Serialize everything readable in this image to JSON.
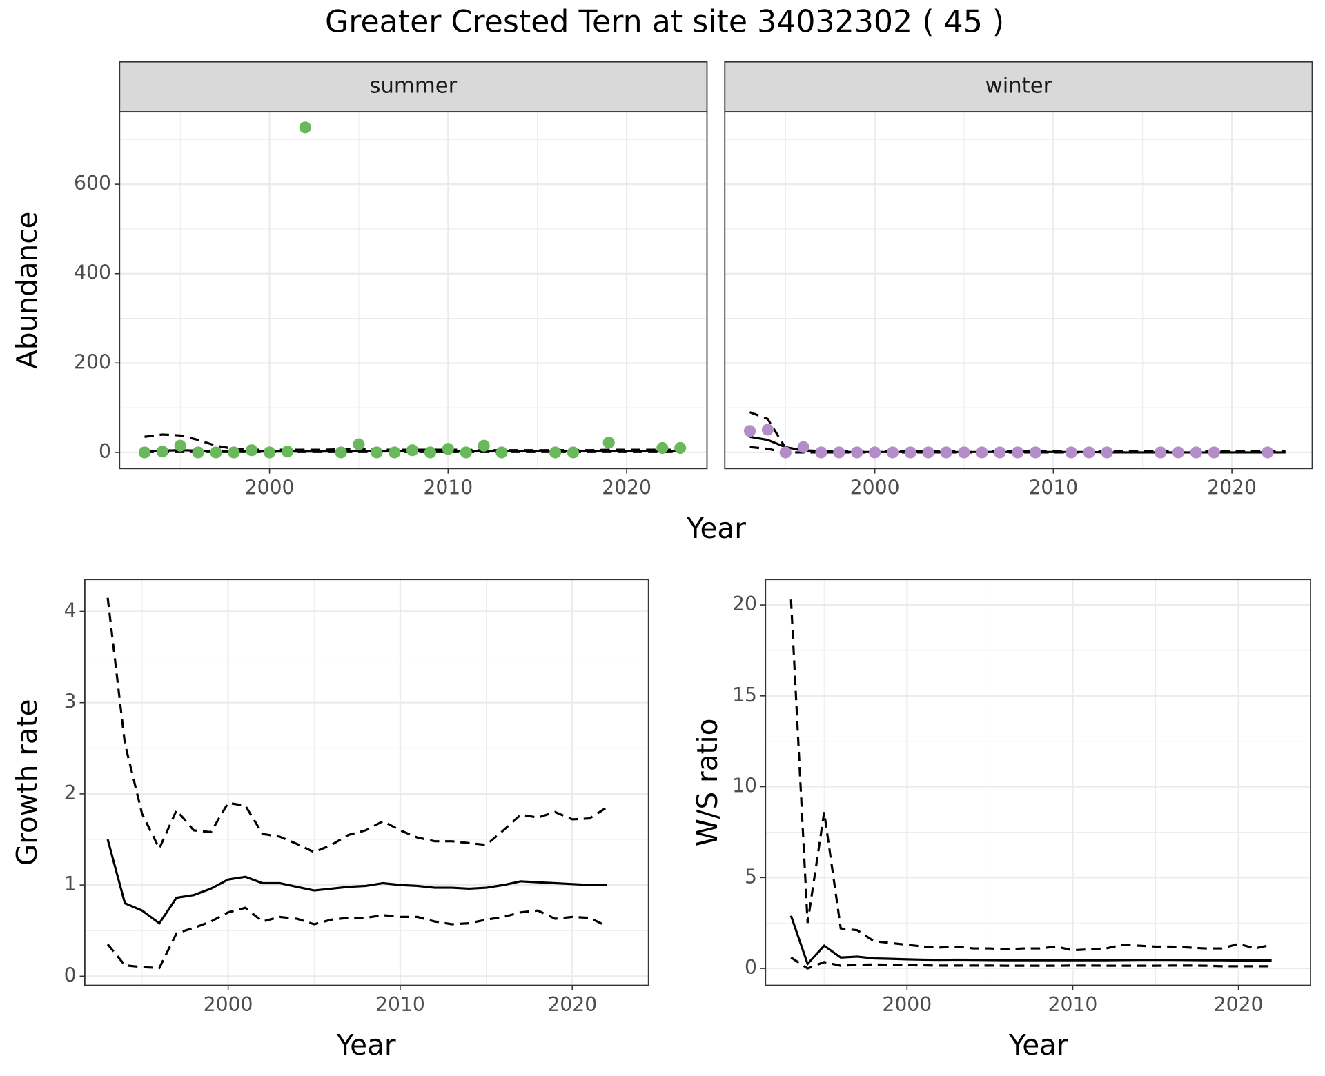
{
  "title": "Greater Crested Tern at site 34032302 ( 45 )",
  "chart_data": [
    {
      "type": "scatter",
      "xlabel": "Year",
      "ylabel": "Abundance",
      "xlim": [
        1991.6,
        2024.5
      ],
      "ylim": [
        -36,
        762
      ],
      "xticks": [
        2000,
        2010,
        2020
      ],
      "yticks": [
        0,
        200,
        400,
        600
      ],
      "grid": true,
      "minor_grid": true,
      "facets": [
        {
          "label": "summer",
          "series": [
            {
              "linestyle": "dashed",
              "color": "#000000",
              "x": [
                1993,
                1994,
                1995,
                1996,
                1997,
                1998,
                1999,
                2000,
                2001,
                2002,
                2003,
                2004,
                2005,
                2006,
                2007,
                2008,
                2009,
                2010,
                2011,
                2012,
                2013,
                2014,
                2015,
                2016,
                2017,
                2018,
                2019,
                2020,
                2021,
                2022,
                2023
              ],
              "values": [
                35,
                40,
                38,
                28,
                15,
                8,
                6,
                6,
                6,
                6,
                6,
                7,
                7,
                6,
                6,
                6,
                6,
                6,
                6,
                5,
                5,
                5,
                5,
                5,
                5,
                5,
                6,
                6,
                6,
                6,
                6
              ]
            },
            {
              "linestyle": "dashed",
              "color": "#000000",
              "x": [
                1993,
                1994,
                1995,
                1996,
                1997,
                1998,
                1999,
                2000,
                2001,
                2002,
                2003,
                2004,
                2005,
                2006,
                2007,
                2008,
                2009,
                2010,
                2011,
                2012,
                2013,
                2014,
                2015,
                2016,
                2017,
                2018,
                2019,
                2020,
                2021,
                2022,
                2023
              ],
              "values": [
                1,
                1,
                1,
                1,
                1,
                1,
                1,
                1,
                1,
                1,
                1,
                1,
                1,
                1,
                1,
                1,
                1,
                1,
                1,
                1,
                1,
                1,
                1,
                1,
                1,
                1,
                1,
                1,
                1,
                1,
                1
              ]
            },
            {
              "linestyle": "solid",
              "color": "#000000",
              "x": [
                1993,
                1994,
                1995,
                1996,
                1997,
                1998,
                1999,
                2000,
                2001,
                2002,
                2003,
                2004,
                2005,
                2006,
                2007,
                2008,
                2009,
                2010,
                2011,
                2012,
                2013,
                2014,
                2015,
                2016,
                2017,
                2018,
                2019,
                2020,
                2021,
                2022,
                2023
              ],
              "values": [
                3,
                4,
                5,
                4,
                3,
                2,
                2,
                2,
                2,
                2,
                2,
                3,
                3,
                3,
                3,
                3,
                3,
                3,
                3,
                3,
                3,
                3,
                3,
                3,
                3,
                3,
                3,
                3,
                3,
                3,
                3
              ]
            },
            {
              "marker": "point",
              "color": "#6ab85c",
              "x": [
                1993,
                1994,
                1995,
                1996,
                1997,
                1998,
                1999,
                2000,
                2001,
                2002,
                2004,
                2005,
                2006,
                2007,
                2008,
                2009,
                2010,
                2011,
                2012,
                2013,
                2016,
                2017,
                2019,
                2022,
                2023
              ],
              "values": [
                0,
                2,
                15,
                0,
                0,
                0,
                5,
                0,
                2,
                727,
                0,
                18,
                0,
                0,
                5,
                0,
                8,
                0,
                15,
                0,
                0,
                0,
                22,
                10,
                10
              ]
            }
          ]
        },
        {
          "label": "winter",
          "series": [
            {
              "linestyle": "dashed",
              "color": "#000000",
              "x": [
                1993,
                1994,
                1995,
                1996,
                1997,
                1998,
                1999,
                2000,
                2001,
                2002,
                2003,
                2004,
                2005,
                2006,
                2007,
                2008,
                2009,
                2010,
                2011,
                2012,
                2013,
                2014,
                2015,
                2016,
                2017,
                2018,
                2019,
                2020,
                2021,
                2022,
                2023
              ],
              "values": [
                90,
                75,
                10,
                5,
                3,
                3,
                3,
                3,
                3,
                3,
                3,
                3,
                3,
                3,
                3,
                3,
                3,
                3,
                3,
                3,
                3,
                3,
                3,
                3,
                3,
                3,
                3,
                3,
                3,
                3,
                3
              ]
            },
            {
              "linestyle": "dashed",
              "color": "#000000",
              "x": [
                1993,
                1994,
                1995,
                1996,
                1997,
                1998,
                1999,
                2000,
                2001,
                2002,
                2003,
                2004,
                2005,
                2006,
                2007,
                2008,
                2009,
                2010,
                2011,
                2012,
                2013,
                2014,
                2015,
                2016,
                2017,
                2018,
                2019,
                2020,
                2021,
                2022,
                2023
              ],
              "values": [
                12,
                8,
                0,
                0,
                0,
                0,
                0,
                0,
                0,
                0,
                0,
                0,
                0,
                0,
                0,
                0,
                0,
                0,
                0,
                0,
                0,
                0,
                0,
                0,
                0,
                0,
                0,
                0,
                0,
                0,
                0
              ]
            },
            {
              "linestyle": "solid",
              "color": "#000000",
              "x": [
                1993,
                1994,
                1995,
                1996,
                1997,
                1998,
                1999,
                2000,
                2001,
                2002,
                2003,
                2004,
                2005,
                2006,
                2007,
                2008,
                2009,
                2010,
                2011,
                2012,
                2013,
                2014,
                2015,
                2016,
                2017,
                2018,
                2019,
                2020,
                2021,
                2022,
                2023
              ],
              "values": [
                35,
                28,
                12,
                4,
                2,
                1,
                1,
                1,
                1,
                1,
                1,
                1,
                1,
                1,
                1,
                1,
                1,
                1,
                1,
                1,
                0,
                0,
                0,
                0,
                0,
                0,
                0,
                0,
                0,
                0,
                0
              ]
            },
            {
              "marker": "point",
              "color": "#b48cc8",
              "x": [
                1993,
                1994,
                1995,
                1996,
                1997,
                1998,
                1999,
                2000,
                2001,
                2002,
                2003,
                2004,
                2005,
                2006,
                2007,
                2008,
                2009,
                2011,
                2012,
                2013,
                2016,
                2017,
                2018,
                2019,
                2022
              ],
              "values": [
                48,
                51,
                0,
                12,
                0,
                0,
                0,
                0,
                0,
                0,
                0,
                0,
                0,
                0,
                0,
                0,
                0,
                0,
                0,
                0,
                0,
                0,
                0,
                0,
                0
              ]
            }
          ]
        }
      ]
    },
    {
      "type": "line",
      "xlabel": "Year",
      "ylabel": "Growth rate",
      "xlim": [
        1991.67,
        2024.43
      ],
      "ylim": [
        -0.1,
        4.35
      ],
      "xticks": [
        2000,
        2010,
        2020
      ],
      "yticks": [
        0,
        1,
        2,
        3,
        4
      ],
      "grid": true,
      "minor_grid": true,
      "x": [
        1993,
        1994,
        1995,
        1996,
        1997,
        1998,
        1999,
        2000,
        2001,
        2002,
        2003,
        2004,
        2005,
        2006,
        2007,
        2008,
        2009,
        2010,
        2011,
        2012,
        2013,
        2014,
        2015,
        2016,
        2017,
        2018,
        2019,
        2020,
        2021,
        2022
      ],
      "series": [
        {
          "linestyle": "dashed",
          "color": "#000000",
          "values": [
            4.15,
            2.55,
            1.78,
            1.4,
            1.82,
            1.6,
            1.58,
            1.9,
            1.87,
            1.56,
            1.53,
            1.45,
            1.36,
            1.44,
            1.55,
            1.6,
            1.7,
            1.6,
            1.52,
            1.48,
            1.48,
            1.46,
            1.44,
            1.6,
            1.77,
            1.74,
            1.8,
            1.72,
            1.73,
            1.85
          ]
        },
        {
          "linestyle": "dashed",
          "color": "#000000",
          "values": [
            0.35,
            0.12,
            0.1,
            0.09,
            0.47,
            0.53,
            0.6,
            0.7,
            0.75,
            0.6,
            0.65,
            0.63,
            0.57,
            0.62,
            0.64,
            0.64,
            0.67,
            0.65,
            0.65,
            0.6,
            0.57,
            0.58,
            0.62,
            0.65,
            0.7,
            0.72,
            0.63,
            0.65,
            0.64,
            0.55
          ]
        },
        {
          "linestyle": "solid",
          "color": "#000000",
          "values": [
            1.5,
            0.8,
            0.72,
            0.58,
            0.86,
            0.89,
            0.96,
            1.06,
            1.09,
            1.02,
            1.02,
            0.98,
            0.94,
            0.96,
            0.98,
            0.99,
            1.02,
            1.0,
            0.99,
            0.97,
            0.97,
            0.96,
            0.97,
            1.0,
            1.04,
            1.03,
            1.02,
            1.01,
            1.0,
            1.0
          ]
        }
      ]
    },
    {
      "type": "line",
      "xlabel": "Year",
      "ylabel": "W/S ratio",
      "xlim": [
        1991.46,
        2024.35
      ],
      "ylim": [
        -0.93,
        21.4
      ],
      "xticks": [
        2000,
        2010,
        2020
      ],
      "yticks": [
        0,
        5,
        10,
        15,
        20
      ],
      "grid": true,
      "minor_grid": true,
      "x": [
        1993,
        1994,
        1995,
        1996,
        1997,
        1998,
        1999,
        2000,
        2001,
        2002,
        2003,
        2004,
        2005,
        2006,
        2007,
        2008,
        2009,
        2010,
        2011,
        2012,
        2013,
        2014,
        2015,
        2016,
        2017,
        2018,
        2019,
        2020,
        2021,
        2022
      ],
      "series": [
        {
          "linestyle": "dashed",
          "color": "#000000",
          "values": [
            20.3,
            2.5,
            8.6,
            2.2,
            2.1,
            1.5,
            1.4,
            1.3,
            1.2,
            1.15,
            1.2,
            1.1,
            1.1,
            1.05,
            1.1,
            1.1,
            1.2,
            1.0,
            1.05,
            1.1,
            1.3,
            1.25,
            1.2,
            1.2,
            1.15,
            1.1,
            1.1,
            1.35,
            1.1,
            1.3
          ]
        },
        {
          "linestyle": "dashed",
          "color": "#000000",
          "values": [
            0.6,
            0.0,
            0.35,
            0.15,
            0.2,
            0.22,
            0.2,
            0.18,
            0.17,
            0.16,
            0.16,
            0.16,
            0.16,
            0.15,
            0.15,
            0.15,
            0.15,
            0.16,
            0.16,
            0.15,
            0.15,
            0.15,
            0.15,
            0.16,
            0.16,
            0.15,
            0.12,
            0.12,
            0.12,
            0.12
          ]
        },
        {
          "linestyle": "solid",
          "color": "#000000",
          "values": [
            2.9,
            0.25,
            1.25,
            0.6,
            0.65,
            0.55,
            0.53,
            0.5,
            0.48,
            0.47,
            0.48,
            0.47,
            0.46,
            0.45,
            0.45,
            0.45,
            0.45,
            0.45,
            0.45,
            0.45,
            0.46,
            0.47,
            0.47,
            0.47,
            0.46,
            0.45,
            0.45,
            0.44,
            0.44,
            0.44
          ]
        }
      ]
    }
  ]
}
